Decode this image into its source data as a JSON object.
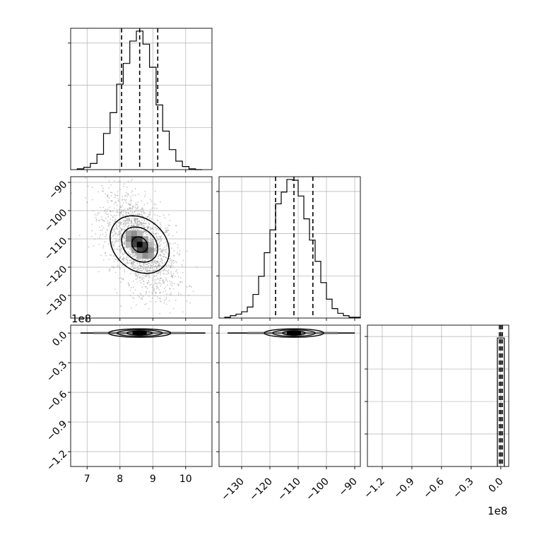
{
  "chart_data": {
    "type": "corner",
    "parameters": 3,
    "multiplier_label": "1e8",
    "p0": {
      "ticks": [
        7,
        8,
        9,
        10
      ],
      "tick_labels": [
        "7",
        "8",
        "9",
        "10"
      ],
      "range": [
        6.5,
        10.8
      ],
      "quantiles": [
        8.05,
        8.6,
        9.15
      ],
      "hist_edges": [
        6.7,
        6.9,
        7.1,
        7.3,
        7.5,
        7.7,
        7.9,
        8.1,
        8.3,
        8.5,
        8.7,
        8.9,
        9.1,
        9.3,
        9.5,
        9.7,
        9.9,
        10.1,
        10.3,
        10.5
      ],
      "hist_counts": [
        1,
        3,
        8,
        20,
        47,
        74,
        111,
        138,
        167,
        180,
        163,
        133,
        84,
        50,
        26,
        11,
        4,
        1,
        0
      ]
    },
    "p1": {
      "ticks": [
        -130,
        -120,
        -110,
        -100,
        -90
      ],
      "tick_labels": [
        "−130",
        "−120",
        "−110",
        "−100",
        "−90"
      ],
      "range": [
        -138,
        -88
      ],
      "quantiles": [
        -118,
        -111.5,
        -104.8
      ],
      "hist_edges": [
        -136,
        -134,
        -132,
        -130,
        -128,
        -126,
        -124,
        -122,
        -120,
        -118,
        -116,
        -114,
        -112,
        -110,
        -108,
        -106,
        -104,
        -102,
        -100,
        -98,
        -96,
        -94,
        -92,
        -90,
        -88
      ],
      "hist_counts": [
        1,
        3,
        5,
        8,
        14,
        30,
        53,
        83,
        112,
        145,
        160,
        176,
        175,
        155,
        126,
        99,
        72,
        45,
        24,
        12,
        6,
        3,
        1,
        1
      ]
    },
    "p2": {
      "ticks": [
        -1.2,
        -0.9,
        -0.6,
        -0.3,
        0.0
      ],
      "tick_labels": [
        "−1.2",
        "−0.9",
        "−0.6",
        "−0.3",
        "0.0"
      ],
      "y_tick_labels": [
        "0.0",
        "−0.3",
        "−0.6",
        "−0.9",
        "−1.2"
      ],
      "range": [
        -1.35,
        0.08
      ],
      "quantiles": [
        -0.015,
        0.0,
        0.015
      ],
      "hist_edges": [
        -0.035,
        0.0,
        0.035
      ],
      "hist_counts": [
        1,
        1
      ]
    },
    "pairs": [
      {
        "x": "p0",
        "y": "p1",
        "center": [
          8.6,
          -112
        ],
        "sigma": [
          0.55,
          9
        ],
        "rho": -0.5
      }
    ],
    "grid": true
  }
}
